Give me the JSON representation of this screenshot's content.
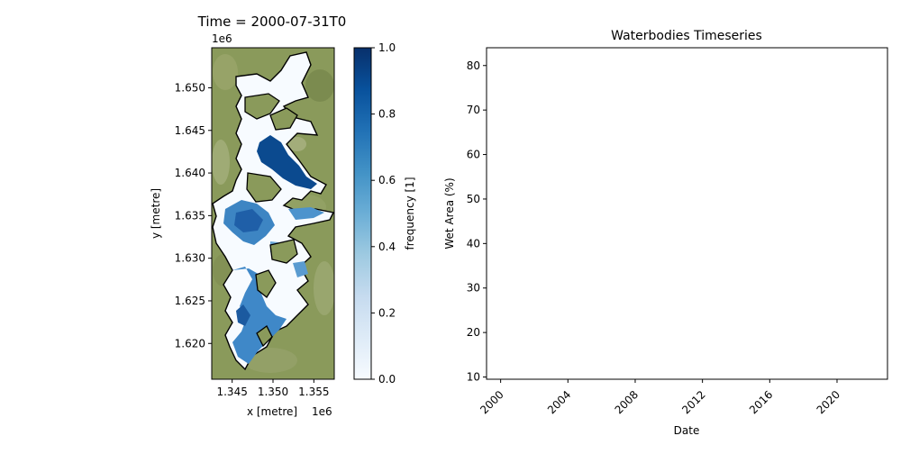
{
  "chart_data": [
    {
      "type": "heatmap",
      "title": "Time = 2000-07-31T0",
      "xlabel": "x [metre]",
      "ylabel": "y [metre]",
      "x_offset_label": "1e6",
      "y_offset_label": "1e6",
      "xlim": [
        1.3425,
        1.3575
      ],
      "ylim": [
        1.6158,
        1.6547
      ],
      "x_ticks": [
        {
          "value": 1.345,
          "label": "1.345"
        },
        {
          "value": 1.35,
          "label": "1.350"
        },
        {
          "value": 1.355,
          "label": "1.355"
        }
      ],
      "y_ticks": [
        {
          "value": 1.62,
          "label": "1.620"
        },
        {
          "value": 1.625,
          "label": "1.625"
        },
        {
          "value": 1.63,
          "label": "1.630"
        },
        {
          "value": 1.635,
          "label": "1.635"
        },
        {
          "value": 1.64,
          "label": "1.640"
        },
        {
          "value": 1.645,
          "label": "1.645"
        },
        {
          "value": 1.65,
          "label": "1.650"
        }
      ],
      "colorbar": {
        "label": "frequency [1]",
        "range": [
          0.0,
          1.0
        ],
        "ticks": [
          {
            "value": 0.0,
            "label": "0.0"
          },
          {
            "value": 0.2,
            "label": "0.2"
          },
          {
            "value": 0.4,
            "label": "0.4"
          },
          {
            "value": 0.6,
            "label": "0.6"
          },
          {
            "value": 0.8,
            "label": "0.8"
          },
          {
            "value": 1.0,
            "label": "1.0"
          }
        ],
        "colormap": [
          "#f7fbff",
          "#deebf7",
          "#c6dbef",
          "#9ecae1",
          "#6baed6",
          "#4292c6",
          "#2171b5",
          "#08519c",
          "#08306b"
        ]
      },
      "colors": {
        "land": "#8a9a5b",
        "outline": "#000000"
      }
    },
    {
      "type": "line",
      "title": "Waterbodies Timeseries",
      "xlabel": "Date",
      "ylabel": "Wet Area (%)",
      "series": [],
      "xlim": [
        "1999-03-01",
        "2023-01-01"
      ],
      "ylim": [
        9.5,
        84
      ],
      "x_ticks": [
        "2000",
        "2004",
        "2008",
        "2012",
        "2016",
        "2020"
      ],
      "y_ticks": [
        10,
        20,
        30,
        40,
        50,
        60,
        70,
        80
      ]
    }
  ]
}
